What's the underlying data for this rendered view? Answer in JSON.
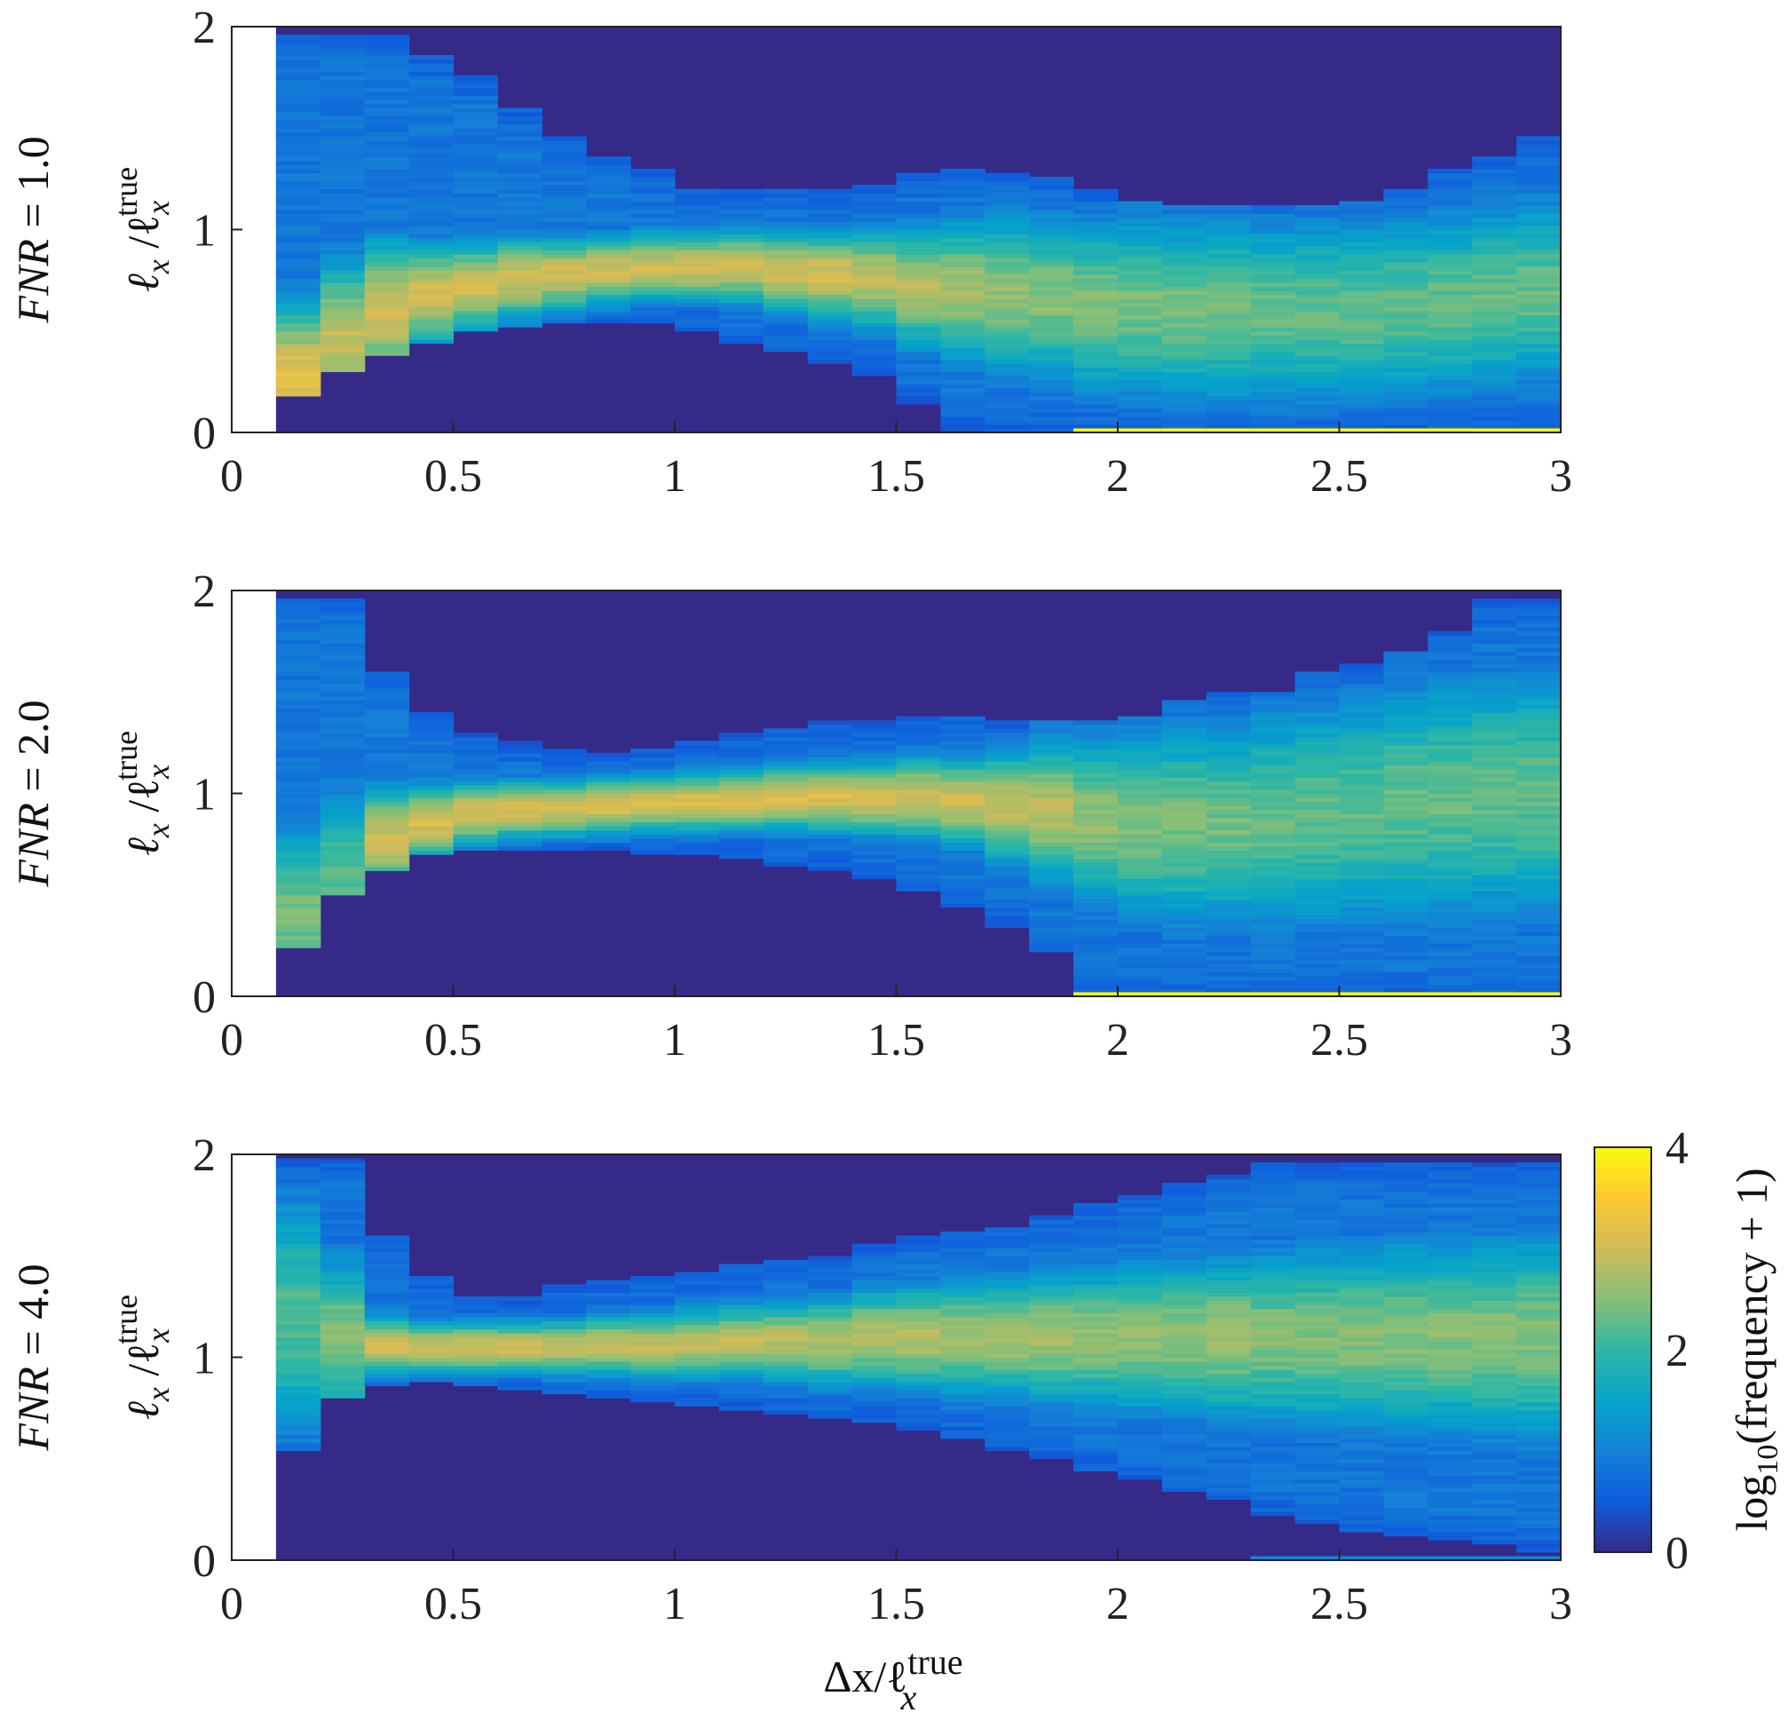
{
  "chart_data": [
    {
      "type": "heatmap",
      "panel_label": "FNR = 1.0",
      "ylabel": "ℓx /ℓx^true",
      "xlim": [
        0,
        3
      ],
      "ylim": [
        0,
        2
      ],
      "xticks": [
        "0",
        "0.5",
        "1",
        "1.5",
        "2",
        "2.5",
        "3"
      ],
      "yticks": [
        "0",
        "1",
        "2"
      ],
      "x_bins": [
        0.15,
        0.25,
        0.35,
        0.45,
        0.55,
        0.65,
        0.75,
        0.85,
        0.95,
        1.05,
        1.15,
        1.25,
        1.35,
        1.45,
        1.55,
        1.65,
        1.75,
        1.85,
        1.95,
        2.05,
        2.15,
        2.25,
        2.35,
        2.45,
        2.55,
        2.65,
        2.75,
        2.85,
        2.95
      ],
      "ridge_center": [
        0.25,
        0.45,
        0.6,
        0.68,
        0.72,
        0.76,
        0.78,
        0.8,
        0.82,
        0.82,
        0.82,
        0.8,
        0.78,
        0.76,
        0.72,
        0.7,
        0.68,
        0.66,
        0.62,
        0.62,
        0.6,
        0.6,
        0.6,
        0.6,
        0.6,
        0.62,
        0.64,
        0.66,
        0.7
      ],
      "ridge_width": [
        0.4,
        0.4,
        0.35,
        0.25,
        0.22,
        0.2,
        0.18,
        0.17,
        0.17,
        0.17,
        0.18,
        0.2,
        0.22,
        0.25,
        0.3,
        0.35,
        0.38,
        0.4,
        0.42,
        0.45,
        0.45,
        0.45,
        0.45,
        0.45,
        0.45,
        0.45,
        0.45,
        0.45,
        0.45
      ],
      "upper_extent": [
        1.95,
        1.95,
        1.95,
        1.85,
        1.75,
        1.6,
        1.45,
        1.35,
        1.3,
        1.2,
        1.2,
        1.2,
        1.2,
        1.22,
        1.28,
        1.3,
        1.28,
        1.25,
        1.2,
        1.15,
        1.12,
        1.12,
        1.12,
        1.12,
        1.15,
        1.2,
        1.3,
        1.35,
        1.45
      ],
      "lower_extent": [
        0.18,
        0.3,
        0.38,
        0.45,
        0.5,
        0.52,
        0.55,
        0.55,
        0.55,
        0.5,
        0.45,
        0.4,
        0.35,
        0.28,
        0.15,
        0.0,
        0.0,
        0.0,
        0.0,
        0.0,
        0.0,
        0.0,
        0.0,
        0.0,
        0.0,
        0.0,
        0.0,
        0.0,
        0.0
      ],
      "peak_level": [
        3.2,
        2.9,
        3.0,
        3.0,
        3.0,
        3.0,
        3.0,
        3.0,
        3.0,
        3.0,
        3.0,
        3.0,
        3.0,
        2.9,
        2.8,
        2.7,
        2.6,
        2.5,
        2.5,
        2.4,
        2.4,
        2.4,
        2.3,
        2.3,
        2.3,
        2.3,
        2.3,
        2.3,
        2.3
      ],
      "zero_row_level_from_x": [
        1.9,
        4.0
      ]
    },
    {
      "type": "heatmap",
      "panel_label": "FNR = 2.0",
      "ylabel": "ℓx /ℓx^true",
      "xlim": [
        0,
        3
      ],
      "ylim": [
        0,
        2
      ],
      "xticks": [
        "0",
        "0.5",
        "1",
        "1.5",
        "2",
        "2.5",
        "3"
      ],
      "yticks": [
        "0",
        "1",
        "2"
      ],
      "x_bins": [
        0.15,
        0.25,
        0.35,
        0.45,
        0.55,
        0.65,
        0.75,
        0.85,
        0.95,
        1.05,
        1.15,
        1.25,
        1.35,
        1.45,
        1.55,
        1.65,
        1.75,
        1.85,
        1.95,
        2.05,
        2.15,
        2.25,
        2.35,
        2.45,
        2.55,
        2.65,
        2.75,
        2.85,
        2.95
      ],
      "ridge_center": [
        0.4,
        0.6,
        0.78,
        0.86,
        0.9,
        0.92,
        0.93,
        0.94,
        0.95,
        0.96,
        0.97,
        0.98,
        0.98,
        0.98,
        0.98,
        0.96,
        0.94,
        0.92,
        0.88,
        0.85,
        0.85,
        0.85,
        0.88,
        0.9,
        0.92,
        0.95,
        0.97,
        1.0,
        1.0
      ],
      "ridge_width": [
        0.45,
        0.45,
        0.25,
        0.18,
        0.15,
        0.14,
        0.14,
        0.14,
        0.14,
        0.15,
        0.15,
        0.16,
        0.17,
        0.18,
        0.2,
        0.22,
        0.28,
        0.35,
        0.4,
        0.45,
        0.5,
        0.5,
        0.55,
        0.55,
        0.55,
        0.6,
        0.6,
        0.6,
        0.6
      ],
      "upper_extent": [
        1.95,
        1.95,
        1.6,
        1.4,
        1.3,
        1.25,
        1.22,
        1.2,
        1.22,
        1.25,
        1.3,
        1.32,
        1.35,
        1.35,
        1.38,
        1.38,
        1.35,
        1.35,
        1.35,
        1.38,
        1.45,
        1.5,
        1.5,
        1.6,
        1.65,
        1.7,
        1.8,
        1.95,
        1.95
      ],
      "lower_extent": [
        0.25,
        0.5,
        0.62,
        0.7,
        0.72,
        0.72,
        0.72,
        0.72,
        0.7,
        0.7,
        0.68,
        0.65,
        0.62,
        0.58,
        0.52,
        0.45,
        0.35,
        0.22,
        0.0,
        0.0,
        0.0,
        0.0,
        0.0,
        0.0,
        0.0,
        0.0,
        0.0,
        0.0,
        0.0
      ],
      "peak_level": [
        2.4,
        2.2,
        3.0,
        3.1,
        3.1,
        3.1,
        3.1,
        3.1,
        3.1,
        3.1,
        3.1,
        3.1,
        3.1,
        3.1,
        3.0,
        3.0,
        2.9,
        2.8,
        2.6,
        2.5,
        2.4,
        2.4,
        2.3,
        2.3,
        2.3,
        2.3,
        2.3,
        2.3,
        2.3
      ],
      "zero_row_level_from_x": [
        1.9,
        4.0
      ]
    },
    {
      "type": "heatmap",
      "panel_label": "FNR = 4.0",
      "ylabel": "ℓx /ℓx^true",
      "xlabel": "Δx/ℓx^true",
      "xlim": [
        0,
        3
      ],
      "ylim": [
        0,
        2
      ],
      "xticks": [
        "0",
        "0.5",
        "1",
        "1.5",
        "2",
        "2.5",
        "3"
      ],
      "yticks": [
        "0",
        "1",
        "2"
      ],
      "x_bins": [
        0.15,
        0.25,
        0.35,
        0.45,
        0.55,
        0.65,
        0.75,
        0.85,
        0.95,
        1.05,
        1.15,
        1.25,
        1.35,
        1.45,
        1.55,
        1.65,
        1.75,
        1.85,
        1.95,
        2.05,
        2.15,
        2.25,
        2.35,
        2.45,
        2.55,
        2.65,
        2.75,
        2.85,
        2.95
      ],
      "ridge_center": [
        1.2,
        1.1,
        1.06,
        1.05,
        1.05,
        1.05,
        1.05,
        1.06,
        1.06,
        1.07,
        1.08,
        1.08,
        1.08,
        1.1,
        1.1,
        1.1,
        1.1,
        1.1,
        1.1,
        1.1,
        1.1,
        1.1,
        1.1,
        1.1,
        1.1,
        1.1,
        1.1,
        1.1,
        1.1
      ],
      "ridge_width": [
        0.6,
        0.4,
        0.15,
        0.13,
        0.13,
        0.13,
        0.14,
        0.15,
        0.16,
        0.17,
        0.18,
        0.2,
        0.22,
        0.24,
        0.26,
        0.28,
        0.3,
        0.32,
        0.34,
        0.36,
        0.38,
        0.4,
        0.42,
        0.44,
        0.45,
        0.46,
        0.47,
        0.48,
        0.5
      ],
      "upper_extent": [
        1.98,
        1.98,
        1.6,
        1.4,
        1.3,
        1.3,
        1.35,
        1.38,
        1.4,
        1.42,
        1.45,
        1.48,
        1.5,
        1.55,
        1.6,
        1.62,
        1.65,
        1.7,
        1.75,
        1.8,
        1.85,
        1.9,
        1.95,
        1.95,
        1.95,
        1.95,
        1.95,
        1.95,
        1.95
      ],
      "lower_extent": [
        0.55,
        0.8,
        0.86,
        0.88,
        0.86,
        0.84,
        0.82,
        0.8,
        0.78,
        0.76,
        0.74,
        0.72,
        0.7,
        0.68,
        0.65,
        0.6,
        0.55,
        0.5,
        0.45,
        0.4,
        0.35,
        0.3,
        0.22,
        0.18,
        0.15,
        0.12,
        0.1,
        0.08,
        0.05
      ],
      "peak_level": [
        2.2,
        2.5,
        3.0,
        3.0,
        3.0,
        3.0,
        2.9,
        2.9,
        2.9,
        2.9,
        2.9,
        2.8,
        2.8,
        2.8,
        2.8,
        2.7,
        2.7,
        2.7,
        2.6,
        2.6,
        2.6,
        2.6,
        2.5,
        2.5,
        2.5,
        2.5,
        2.5,
        2.5,
        2.5
      ],
      "zero_row_level_from_x": [
        2.3,
        1.0
      ]
    }
  ],
  "colorbar": {
    "label": "log10(frequency + 1)",
    "range": [
      0,
      4
    ],
    "ticks": [
      "0",
      "2",
      "4"
    ],
    "colormap": [
      "#352a87",
      "#0f5cdd",
      "#1481d6",
      "#06a4ca",
      "#2eb7a4",
      "#87bf77",
      "#d1bb59",
      "#fec832",
      "#f9fb0e"
    ]
  },
  "axis_text": {
    "ylabel_main": "ℓ",
    "ylabel_sub": "x",
    "ylabel_slash": " /ℓ",
    "ylabel_sup": "true",
    "xlabel_main": "Δx/ℓ",
    "xlabel_sub": "x",
    "xlabel_sup": "true",
    "fnr_var": "FNR",
    "fnr_values": [
      "= 1.0",
      "= 2.0",
      "= 4.0"
    ],
    "cbar_log": "log",
    "cbar_sub": "10",
    "cbar_rest": "(frequency + 1)"
  }
}
